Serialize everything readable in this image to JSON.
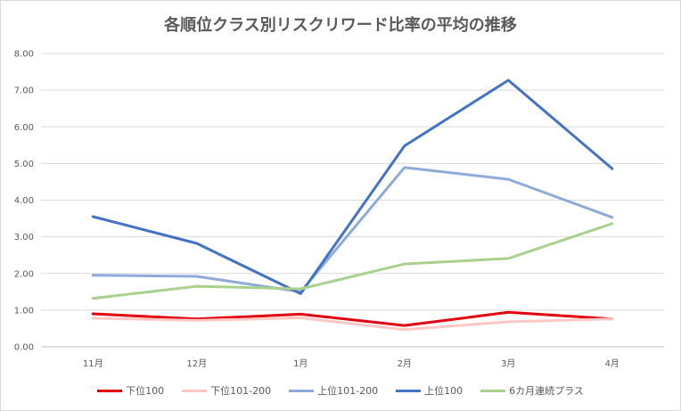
{
  "chart_data": {
    "type": "line",
    "title": "各順位クラス別リスクリワード比率の平均の推移",
    "categories": [
      "11月",
      "12月",
      "1月",
      "2月",
      "3月",
      "4月"
    ],
    "ylim": [
      0,
      8
    ],
    "yticks": [
      "0.00",
      "1.00",
      "2.00",
      "3.00",
      "4.00",
      "5.00",
      "6.00",
      "7.00",
      "8.00"
    ],
    "series": [
      {
        "name": "下位100",
        "color": "#e0000f",
        "values": [
          0.9,
          0.76,
          0.89,
          0.58,
          0.94,
          0.76
        ]
      },
      {
        "name": "下位101-200",
        "color": "#ffc7c3",
        "values": [
          0.78,
          0.72,
          0.79,
          0.47,
          0.68,
          0.76
        ]
      },
      {
        "name": "上位101-200",
        "color": "#8eaadb",
        "values": [
          1.95,
          1.92,
          1.5,
          4.89,
          4.57,
          3.53
        ]
      },
      {
        "name": "上位100",
        "color": "#4472c4",
        "values": [
          3.55,
          2.82,
          1.45,
          5.48,
          7.27,
          4.86
        ]
      },
      {
        "name": "6カ月連続プラス",
        "color": "#a9d18e",
        "values": [
          1.32,
          1.65,
          1.58,
          2.26,
          2.41,
          3.36
        ]
      }
    ]
  }
}
